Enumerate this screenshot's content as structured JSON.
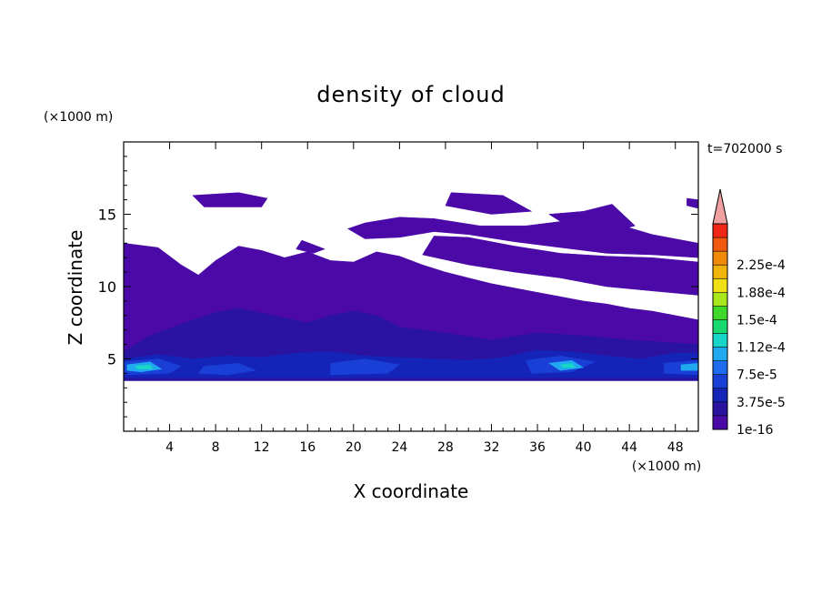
{
  "chart_data": {
    "type": "heatmap",
    "title": "density of cloud",
    "xlabel": "X coordinate",
    "ylabel": "Z coordinate",
    "x_unit": "(×1000 m)",
    "y_unit": "(×1000 m)",
    "time_label": "t=702000 s",
    "xlim": [
      0,
      50
    ],
    "ylim": [
      0,
      20
    ],
    "x_ticks": [
      4,
      8,
      12,
      16,
      20,
      24,
      28,
      32,
      36,
      40,
      44,
      48
    ],
    "y_ticks": [
      5,
      10,
      15
    ],
    "colorbar": {
      "labels": [
        "2.25e-4",
        "1.88e-4",
        "1.5e-4",
        "1.12e-4",
        "7.5e-5",
        "3.75e-5",
        "1e-16"
      ],
      "colors": [
        "#4b0aa8",
        "#2a13a0",
        "#1424b8",
        "#1a3fd6",
        "#1f6cf0",
        "#20a8f0",
        "#18d6c8",
        "#18d870",
        "#3ed82a",
        "#a8e61c",
        "#f0e014",
        "#f0b40a",
        "#f08a0a",
        "#f05a10",
        "#f02818",
        "#f0a0a0"
      ],
      "extend": "max"
    },
    "regions": [
      {
        "level": 0,
        "poly": [
          [
            0,
            13
          ],
          [
            3,
            12.7
          ],
          [
            5,
            11.5
          ],
          [
            6.5,
            10.8
          ],
          [
            8,
            11.8
          ],
          [
            10,
            12.8
          ],
          [
            12,
            12.5
          ],
          [
            14,
            12
          ],
          [
            16,
            12.4
          ],
          [
            18,
            11.8
          ],
          [
            20,
            11.7
          ],
          [
            22,
            12.4
          ],
          [
            24,
            12.1
          ],
          [
            26,
            11.5
          ],
          [
            28,
            11
          ],
          [
            30,
            10.6
          ],
          [
            32,
            10.2
          ],
          [
            34,
            9.9
          ],
          [
            36,
            9.6
          ],
          [
            38,
            9.3
          ],
          [
            40,
            9
          ],
          [
            42,
            8.8
          ],
          [
            44,
            8.5
          ],
          [
            46,
            8.3
          ],
          [
            48,
            8
          ],
          [
            50,
            7.7
          ],
          [
            50,
            3.5
          ],
          [
            0,
            3.5
          ]
        ]
      },
      {
        "level": 0,
        "poly": [
          [
            26,
            12.2
          ],
          [
            30,
            11.5
          ],
          [
            34,
            11
          ],
          [
            38,
            10.6
          ],
          [
            42,
            10
          ],
          [
            46,
            9.7
          ],
          [
            50,
            9.4
          ],
          [
            50,
            11.7
          ],
          [
            46,
            12
          ],
          [
            42,
            12.1
          ],
          [
            38,
            12.3
          ],
          [
            34,
            12.8
          ],
          [
            30,
            13.4
          ],
          [
            27,
            13.5
          ]
        ]
      },
      {
        "level": 0,
        "poly": [
          [
            19.5,
            14
          ],
          [
            21,
            13.3
          ],
          [
            24,
            13.4
          ],
          [
            27,
            13.8
          ],
          [
            30,
            13.6
          ],
          [
            34,
            13.1
          ],
          [
            38,
            12.7
          ],
          [
            42,
            12.3
          ],
          [
            46,
            12.2
          ],
          [
            50,
            12
          ],
          [
            50,
            13
          ],
          [
            46,
            13.6
          ],
          [
            43,
            14.3
          ],
          [
            40,
            14.7
          ],
          [
            35,
            14.2
          ],
          [
            31,
            14.2
          ],
          [
            27,
            14.7
          ],
          [
            24,
            14.8
          ],
          [
            21,
            14.4
          ]
        ]
      },
      {
        "level": 0,
        "poly": [
          [
            37,
            15
          ],
          [
            40,
            15.2
          ],
          [
            42.5,
            15.7
          ],
          [
            44.5,
            14.2
          ],
          [
            42,
            13.7
          ],
          [
            39,
            14
          ]
        ]
      },
      {
        "level": 0,
        "poly": [
          [
            6,
            16.3
          ],
          [
            10,
            16.5
          ],
          [
            12.5,
            16.1
          ],
          [
            12,
            15.5
          ],
          [
            7,
            15.5
          ]
        ]
      },
      {
        "level": 0,
        "poly": [
          [
            28.5,
            16.5
          ],
          [
            33,
            16.3
          ],
          [
            35.5,
            15.2
          ],
          [
            32,
            15
          ],
          [
            28,
            15.6
          ]
        ]
      },
      {
        "level": 0,
        "poly": [
          [
            15.5,
            13.2
          ],
          [
            17.5,
            12.6
          ],
          [
            16.5,
            12.3
          ],
          [
            15,
            12.6
          ]
        ]
      },
      {
        "level": 0,
        "poly": [
          [
            49,
            16.1
          ],
          [
            50,
            16
          ],
          [
            50,
            15.4
          ],
          [
            49,
            15.6
          ]
        ]
      },
      {
        "level": 1,
        "poly": [
          [
            0,
            5.5
          ],
          [
            2,
            6.5
          ],
          [
            5,
            7.4
          ],
          [
            8,
            8.2
          ],
          [
            10,
            8.5
          ],
          [
            13,
            8
          ],
          [
            16,
            7.5
          ],
          [
            18,
            8
          ],
          [
            20,
            8.3
          ],
          [
            22,
            8
          ],
          [
            24,
            7.2
          ],
          [
            28,
            6.8
          ],
          [
            32,
            6.3
          ],
          [
            36,
            6.8
          ],
          [
            40,
            6.6
          ],
          [
            44,
            6.3
          ],
          [
            48,
            6.1
          ],
          [
            50,
            6
          ],
          [
            50,
            3.5
          ],
          [
            0,
            3.5
          ]
        ]
      },
      {
        "level": 2,
        "poly": [
          [
            0,
            5
          ],
          [
            3,
            5.3
          ],
          [
            6,
            5
          ],
          [
            9,
            5.2
          ],
          [
            12,
            5.1
          ],
          [
            15,
            5.4
          ],
          [
            18,
            5.5
          ],
          [
            21,
            5.2
          ],
          [
            24,
            5.1
          ],
          [
            27,
            5
          ],
          [
            30,
            4.9
          ],
          [
            33,
            5.1
          ],
          [
            36,
            5.6
          ],
          [
            39,
            5.5
          ],
          [
            42,
            5.2
          ],
          [
            45,
            5
          ],
          [
            48,
            5.4
          ],
          [
            50,
            5.4
          ],
          [
            50,
            3.7
          ],
          [
            0,
            3.7
          ]
        ]
      },
      {
        "level": 3,
        "poly": [
          [
            0,
            4.8
          ],
          [
            3,
            5
          ],
          [
            5,
            4.5
          ],
          [
            4,
            4
          ],
          [
            0,
            3.9
          ]
        ]
      },
      {
        "level": 3,
        "poly": [
          [
            7,
            4.5
          ],
          [
            10,
            4.7
          ],
          [
            11.5,
            4.2
          ],
          [
            9,
            3.9
          ],
          [
            6.5,
            4
          ]
        ]
      },
      {
        "level": 3,
        "poly": [
          [
            18,
            4.7
          ],
          [
            21,
            5
          ],
          [
            24,
            4.6
          ],
          [
            23,
            4
          ],
          [
            18,
            3.9
          ]
        ]
      },
      {
        "level": 3,
        "poly": [
          [
            35,
            4.9
          ],
          [
            38,
            5.2
          ],
          [
            41,
            4.8
          ],
          [
            39,
            4.1
          ],
          [
            35.5,
            4
          ]
        ]
      },
      {
        "level": 3,
        "poly": [
          [
            47,
            4.7
          ],
          [
            50,
            4.9
          ],
          [
            50,
            3.9
          ],
          [
            47,
            4
          ]
        ]
      },
      {
        "level": 5,
        "poly": [
          [
            0.3,
            4.6
          ],
          [
            2.3,
            4.8
          ],
          [
            3.3,
            4.3
          ],
          [
            1.5,
            4.1
          ],
          [
            0.3,
            4.2
          ]
        ]
      },
      {
        "level": 5,
        "poly": [
          [
            37,
            4.7
          ],
          [
            39,
            4.9
          ],
          [
            40,
            4.4
          ],
          [
            38,
            4.2
          ]
        ]
      },
      {
        "level": 5,
        "poly": [
          [
            48.5,
            4.6
          ],
          [
            50,
            4.7
          ],
          [
            50,
            4.2
          ],
          [
            48.5,
            4.2
          ]
        ]
      },
      {
        "level": 6,
        "poly": [
          [
            1,
            4.5
          ],
          [
            2.3,
            4.6
          ],
          [
            2.5,
            4.3
          ],
          [
            1.2,
            4.3
          ]
        ]
      },
      {
        "level": 6,
        "poly": [
          [
            38,
            4.6
          ],
          [
            39,
            4.7
          ],
          [
            39.3,
            4.4
          ],
          [
            38.2,
            4.4
          ]
        ]
      }
    ]
  }
}
